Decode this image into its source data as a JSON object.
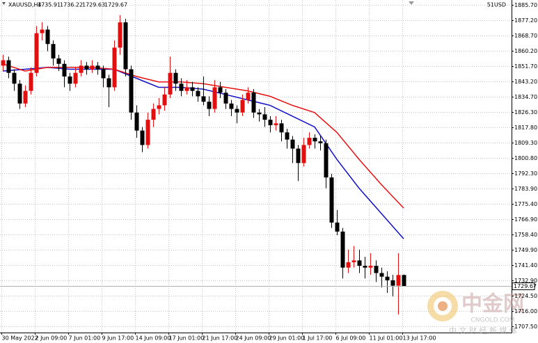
{
  "chart_data": {
    "type": "candlestick",
    "symbol": "XAUUSD,H4",
    "account_label": "51USD",
    "up_color": "#e01010",
    "down_color": "#000000",
    "ylim": [
      1704,
      1888.4
    ],
    "xlim": [
      -0.5,
      91.375
    ],
    "grid": true,
    "yticks": [
      {
        "value": 1885.7,
        "label": "1885.70"
      },
      {
        "value": 1877.2,
        "label": "1877.20"
      },
      {
        "value": 1868.7,
        "label": "1868.70"
      },
      {
        "value": 1860.2,
        "label": "1860.20"
      },
      {
        "value": 1851.7,
        "label": "1851.70"
      },
      {
        "value": 1843.2,
        "label": "1843.20"
      },
      {
        "value": 1834.7,
        "label": "1834.70"
      },
      {
        "value": 1826.3,
        "label": "1826.30"
      },
      {
        "value": 1817.8,
        "label": "1817.80"
      },
      {
        "value": 1809.3,
        "label": "1809.30"
      },
      {
        "value": 1800.8,
        "label": "1800.80"
      },
      {
        "value": 1792.3,
        "label": "1792.30"
      },
      {
        "value": 1783.9,
        "label": "1783.90"
      },
      {
        "value": 1775.4,
        "label": "1775.40"
      },
      {
        "value": 1766.9,
        "label": "1766.90"
      },
      {
        "value": 1758.4,
        "label": "1758.40"
      },
      {
        "value": 1749.9,
        "label": "1749.90"
      },
      {
        "value": 1741.4,
        "label": "1741.40"
      },
      {
        "value": 1732.9,
        "label": "1732.90"
      },
      {
        "value": 1724.5,
        "label": "1724.50"
      },
      {
        "value": 1716,
        "label": "1716.00"
      },
      {
        "value": 1707.5,
        "label": "1707.50"
      }
    ],
    "xticks": [
      {
        "value": -0.25,
        "label": "30 May 2022"
      },
      {
        "value": 5.75,
        "label": "2 Jun 09:00"
      },
      {
        "value": 11.75,
        "label": "7 Jun 01:00"
      },
      {
        "value": 17.75,
        "label": "9 Jun 17:00"
      },
      {
        "value": 23.75,
        "label": "14 Jun 09:00"
      },
      {
        "value": 29.75,
        "label": "17 Jun 01:00"
      },
      {
        "value": 35.75,
        "label": "21 Jun 17:00"
      },
      {
        "value": 41.75,
        "label": "24 Jun 09:00"
      },
      {
        "value": 47.75,
        "label": "29 Jun 01:00"
      },
      {
        "value": 53.75,
        "label": "1 Jul 17:00"
      },
      {
        "value": 59.75,
        "label": "6 Jul 09:00"
      },
      {
        "value": 65.75,
        "label": "11 Jul 01:00"
      },
      {
        "value": 71.75,
        "label": "13 Jul 17:00"
      }
    ],
    "candles": [
      [
        1852,
        1858,
        1849,
        1855
      ],
      [
        1855,
        1857,
        1845,
        1848
      ],
      [
        1848,
        1850,
        1838,
        1842
      ],
      [
        1842,
        1844,
        1828,
        1831
      ],
      [
        1831,
        1841,
        1829,
        1838
      ],
      [
        1838,
        1851,
        1836,
        1848
      ],
      [
        1848,
        1874,
        1846,
        1870
      ],
      [
        1870,
        1876,
        1866,
        1872
      ],
      [
        1872,
        1874,
        1860,
        1864
      ],
      [
        1864,
        1866,
        1852,
        1856
      ],
      [
        1856,
        1858,
        1849,
        1853
      ],
      [
        1853,
        1855,
        1840,
        1846
      ],
      [
        1846,
        1848,
        1838,
        1842
      ],
      [
        1842,
        1851,
        1840,
        1848
      ],
      [
        1848,
        1855,
        1846,
        1852
      ],
      [
        1852,
        1854,
        1847,
        1850
      ],
      [
        1850,
        1855,
        1848,
        1852
      ],
      [
        1852,
        1854,
        1847,
        1850
      ],
      [
        1850,
        1852,
        1840,
        1845
      ],
      [
        1845,
        1847,
        1829,
        1840
      ],
      [
        1840,
        1866,
        1838,
        1862
      ],
      [
        1862,
        1880,
        1858,
        1876
      ],
      [
        1876,
        1878,
        1846,
        1850
      ],
      [
        1850,
        1852,
        1822,
        1826
      ],
      [
        1826,
        1830,
        1812,
        1816
      ],
      [
        1816,
        1818,
        1804,
        1808
      ],
      [
        1808,
        1826,
        1806,
        1822
      ],
      [
        1822,
        1831,
        1818,
        1828
      ],
      [
        1828,
        1834,
        1825,
        1830
      ],
      [
        1830,
        1840,
        1827,
        1836
      ],
      [
        1836,
        1857,
        1834,
        1848
      ],
      [
        1848,
        1850,
        1838,
        1842
      ],
      [
        1842,
        1845,
        1835,
        1838
      ],
      [
        1838,
        1844,
        1836,
        1840
      ],
      [
        1840,
        1843,
        1835,
        1838
      ],
      [
        1838,
        1840,
        1832,
        1835
      ],
      [
        1835,
        1846,
        1830,
        1832
      ],
      [
        1832,
        1835,
        1824,
        1828
      ],
      [
        1828,
        1844,
        1826,
        1840
      ],
      [
        1840,
        1843,
        1834,
        1837
      ],
      [
        1837,
        1839,
        1828,
        1831
      ],
      [
        1831,
        1833,
        1824,
        1828
      ],
      [
        1828,
        1830,
        1820,
        1826
      ],
      [
        1826,
        1836,
        1824,
        1833
      ],
      [
        1833,
        1840,
        1831,
        1837
      ],
      [
        1837,
        1839,
        1823,
        1826
      ],
      [
        1826,
        1828,
        1821,
        1825
      ],
      [
        1825,
        1829,
        1818,
        1822
      ],
      [
        1822,
        1824,
        1815,
        1819
      ],
      [
        1819,
        1824,
        1816,
        1820
      ],
      [
        1820,
        1822,
        1810,
        1815
      ],
      [
        1815,
        1817,
        1806,
        1811
      ],
      [
        1811,
        1813,
        1798,
        1806
      ],
      [
        1806,
        1808,
        1788,
        1798
      ],
      [
        1798,
        1812,
        1796,
        1808
      ],
      [
        1808,
        1815,
        1806,
        1812
      ],
      [
        1812,
        1814,
        1806,
        1810
      ],
      [
        1810,
        1813,
        1805,
        1809
      ],
      [
        1809,
        1811,
        1784,
        1790
      ],
      [
        1790,
        1792,
        1762,
        1765
      ],
      [
        1765,
        1772,
        1758,
        1760
      ],
      [
        1760,
        1762,
        1734,
        1740
      ],
      [
        1740,
        1750,
        1737,
        1743
      ],
      [
        1743,
        1752,
        1740,
        1744
      ],
      [
        1744,
        1750,
        1737,
        1741
      ],
      [
        1741,
        1746,
        1734,
        1740
      ],
      [
        1740,
        1748,
        1736,
        1741
      ],
      [
        1741,
        1744,
        1732,
        1737
      ],
      [
        1737,
        1740,
        1729,
        1735
      ],
      [
        1735,
        1738,
        1726,
        1733
      ],
      [
        1733,
        1736,
        1724,
        1730
      ],
      [
        1730,
        1748,
        1714,
        1735.91
      ],
      [
        1735.91,
        1736.22,
        1729.63,
        1729.67
      ]
    ],
    "series": [
      {
        "color": "#1010c8",
        "x": [
          0,
          4,
          8,
          12,
          16,
          20,
          24,
          28,
          32,
          36,
          40,
          44,
          48,
          52,
          56,
          60,
          64,
          68,
          72
        ],
        "values": [
          1849,
          1850,
          1851,
          1850,
          1850,
          1850,
          1845,
          1840,
          1840,
          1839,
          1836,
          1833,
          1830,
          1824,
          1818,
          1800,
          1784,
          1770,
          1756
        ]
      },
      {
        "color": "#e81010",
        "x": [
          0,
          4,
          8,
          12,
          16,
          20,
          24,
          28,
          32,
          36,
          40,
          44,
          48,
          52,
          56,
          60,
          64,
          68,
          72
        ],
        "values": [
          1853,
          1849,
          1851,
          1851,
          1851,
          1850,
          1846,
          1843,
          1843,
          1842,
          1840,
          1838,
          1835,
          1830,
          1826,
          1815,
          1800,
          1786,
          1773
        ]
      }
    ]
  },
  "watermark": {
    "brand": "中金网",
    "site": "CNGOLD.COM",
    "tagline": "中 文 财 经 新 媒 体"
  }
}
